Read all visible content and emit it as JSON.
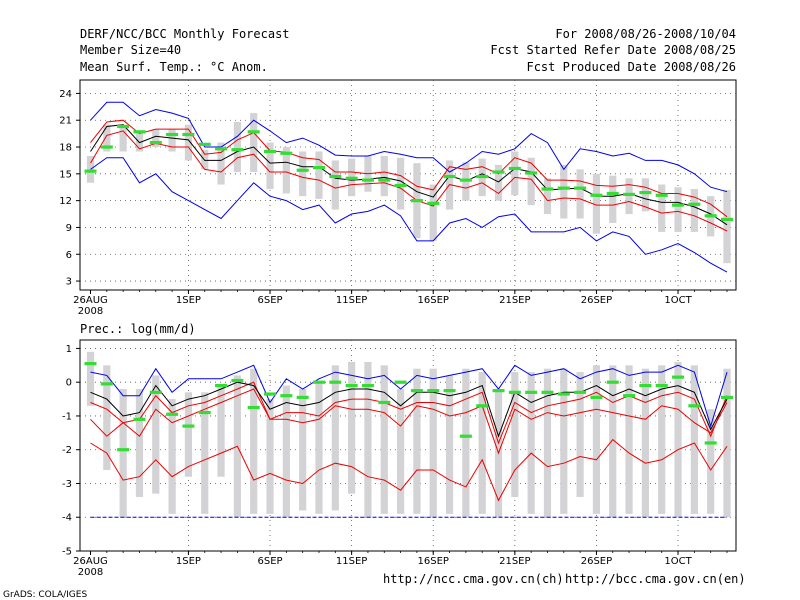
{
  "header": {
    "left": [
      "DERF/NCC/BCC Monthly Forecast",
      "Member Size=40",
      "Mean Surf. Temp.: °C Anom."
    ],
    "right": [
      "For 2008/08/26-2008/10/04",
      "Fcst Started Refer Date 2008/08/25",
      "Fcst Produced Date 2008/08/26"
    ]
  },
  "footer": {
    "url_ncc": "http://ncc.cma.gov.cn(ch)",
    "url_bcc": "http://bcc.cma.gov.cn(en)",
    "grads": "GrADS: COLA/IGES"
  },
  "colors": {
    "band": "#d3d3d6",
    "obs": "#33dd33",
    "mean": "#000000",
    "spread": "#ee0000",
    "extreme": "#0000ee",
    "grid": "#555555"
  },
  "chart_data": [
    {
      "type": "line",
      "title": "Mean Surf. Temp.: °C Anom.",
      "x_labels": [
        "26AUG",
        "1SEP",
        "6SEP",
        "11SEP",
        "16SEP",
        "21SEP",
        "26SEP",
        "1OCT"
      ],
      "x_sub_label": "2008",
      "x_label_days": [
        1,
        7,
        12,
        17,
        22,
        27,
        32,
        37
      ],
      "yticks": [
        3,
        6,
        9,
        12,
        15,
        18,
        21,
        24
      ],
      "ylim": [
        2,
        25.5
      ],
      "days": 40,
      "series": [
        {
          "name": "max",
          "color": "#0000ee",
          "values": [
            21,
            23,
            23,
            21.5,
            22.2,
            21.8,
            21.2,
            18,
            18,
            19.2,
            21,
            19.8,
            18.5,
            19,
            18.2,
            17.1,
            17,
            17,
            17.5,
            17.2,
            16.8,
            16.8,
            15.2,
            16.2,
            17.5,
            17.2,
            17.8,
            19.5,
            18.5,
            15.5,
            17.8,
            17.5,
            17,
            17.3,
            16.5,
            16.5,
            16,
            15,
            13.5,
            13
          ]
        },
        {
          "name": "upper",
          "color": "#ee0000",
          "values": [
            18.5,
            20.8,
            21,
            19.5,
            20,
            20,
            20,
            17.2,
            17.4,
            18.8,
            19.6,
            17.6,
            17.4,
            16.8,
            16.6,
            15.2,
            15.2,
            15,
            15.2,
            14.8,
            13.6,
            13.2,
            15.8,
            15.5,
            15.8,
            15,
            16.8,
            16.2,
            14.3,
            14.3,
            14.2,
            13.7,
            13.6,
            13.8,
            13.5,
            12.8,
            12.8,
            12.4,
            11.6,
            10.2
          ]
        },
        {
          "name": "mean",
          "color": "#000000",
          "values": [
            17.5,
            20.3,
            20.5,
            18.5,
            19.2,
            19,
            18.8,
            16.5,
            16.5,
            17.5,
            18,
            16.2,
            16.3,
            15.8,
            15.8,
            14.5,
            14.3,
            14.4,
            14.6,
            14.2,
            13,
            12.4,
            14.8,
            14.2,
            15,
            14.1,
            15.6,
            15.2,
            13.2,
            13.3,
            13.4,
            12.5,
            12.5,
            12.8,
            12.2,
            11.8,
            11.8,
            11.3,
            10.5,
            9.3
          ]
        },
        {
          "name": "lower",
          "color": "#ee0000",
          "values": [
            16.2,
            19.3,
            19.8,
            17.8,
            18.4,
            18,
            18,
            15.5,
            15.2,
            16.8,
            17.2,
            15.2,
            15.2,
            14.6,
            14.3,
            13.4,
            13.8,
            13.9,
            14,
            13.4,
            12,
            11.4,
            13.8,
            13.4,
            14,
            12.8,
            14.6,
            14.4,
            12,
            12.3,
            12.2,
            11.5,
            11.5,
            11.9,
            11.3,
            10.6,
            10.8,
            10.3,
            9.5,
            8.6
          ]
        },
        {
          "name": "min",
          "color": "#0000ee",
          "values": [
            15.5,
            16.8,
            16.8,
            14,
            15,
            13,
            12,
            11,
            10,
            12,
            14,
            12.5,
            12,
            11,
            11.5,
            9.5,
            10.5,
            10.8,
            11.5,
            10.3,
            7.5,
            7.5,
            9.5,
            10,
            9,
            10.2,
            10.5,
            8.5,
            8.5,
            8.5,
            9,
            7.5,
            8.5,
            8,
            6,
            6.5,
            7.2,
            6.2,
            5,
            4
          ]
        }
      ],
      "box": {
        "hi": [
          17,
          20.5,
          20.5,
          19.5,
          20,
          20,
          20.5,
          17.7,
          18.5,
          20.8,
          21.8,
          18.5,
          18,
          17.5,
          17.5,
          16.5,
          16.7,
          17,
          17,
          16.8,
          16.2,
          13.8,
          16.5,
          16.3,
          16.7,
          16,
          17.5,
          16.8,
          14.5,
          16,
          15.5,
          15,
          14.8,
          14.5,
          14.5,
          13.8,
          13.5,
          13.3,
          12.5,
          13.2
        ],
        "lo": [
          14,
          17.5,
          17.5,
          17.5,
          18,
          17.5,
          16.5,
          15.5,
          13.8,
          15.2,
          15.2,
          13.3,
          12.8,
          12.5,
          12.2,
          11,
          12.5,
          13,
          12.5,
          11,
          7.8,
          7.5,
          11,
          12,
          12.5,
          12,
          12.6,
          11.5,
          10.5,
          10,
          10,
          8.3,
          9.5,
          10.5,
          10.8,
          8.5,
          8.5,
          8.5,
          8,
          5
        ]
      },
      "obs": [
        15.3,
        18,
        20.3,
        19.7,
        18.5,
        19.4,
        19.4,
        18.3,
        17.8,
        17.7,
        19.7,
        17.5,
        17.3,
        15.4,
        15.7,
        14.7,
        14.5,
        14.3,
        14.3,
        13.7,
        12,
        11.7,
        14.7,
        14.3,
        14.7,
        15.2,
        15.6,
        15.1,
        13.3,
        13.4,
        13.4,
        12.6,
        12.8,
        12.7,
        12.9,
        12.6,
        11.5,
        11.6,
        10.3,
        9.9
      ]
    },
    {
      "type": "line",
      "title": "Prec.: log(mm/d)",
      "x_labels": [
        "26AUG",
        "1SEP",
        "6SEP",
        "11SEP",
        "16SEP",
        "21SEP",
        "26SEP",
        "1OCT"
      ],
      "x_sub_label": "2008",
      "x_label_days": [
        1,
        7,
        12,
        17,
        22,
        27,
        32,
        37
      ],
      "yticks": [
        -5,
        -4,
        -3,
        -2,
        -1,
        0,
        1
      ],
      "ylim": [
        -5,
        1.25
      ],
      "days": 40,
      "floor": -4,
      "series": [
        {
          "name": "max",
          "color": "#0000ee",
          "values": [
            0.3,
            0.2,
            -0.4,
            -0.4,
            0.4,
            -0.3,
            0.1,
            0.1,
            0.1,
            0.3,
            0.5,
            -0.6,
            0.1,
            -0.2,
            0.1,
            0.3,
            0.2,
            0.1,
            0.2,
            -0.2,
            0.2,
            0.1,
            0.2,
            0.3,
            0.4,
            -0.2,
            0.5,
            0.2,
            0.3,
            0.4,
            0.1,
            0.3,
            0.4,
            0.2,
            0.3,
            0.3,
            0.5,
            0.3,
            -1.3,
            0.3
          ]
        },
        {
          "name": "upper",
          "color": "#ee0000",
          "values": [
            -0.6,
            -0.8,
            -1.2,
            -1.1,
            -0.4,
            -0.9,
            -0.7,
            -0.6,
            -0.4,
            -0.2,
            0,
            -1.1,
            -0.9,
            -0.9,
            -1,
            -0.6,
            -0.5,
            -0.5,
            -0.6,
            -0.8,
            -0.6,
            -0.6,
            -0.7,
            -0.5,
            -0.3,
            -1.8,
            -0.6,
            -0.9,
            -0.7,
            -0.6,
            -0.5,
            -0.3,
            -0.6,
            -0.4,
            -0.6,
            -0.4,
            -0.3,
            -0.5,
            -1.6,
            -0.4
          ]
        },
        {
          "name": "mean",
          "color": "#000000",
          "values": [
            -0.3,
            -0.5,
            -1,
            -0.9,
            -0.1,
            -0.7,
            -0.5,
            -0.4,
            -0.2,
            0,
            -0.1,
            -0.8,
            -0.6,
            -0.7,
            -0.6,
            -0.3,
            -0.2,
            -0.2,
            -0.3,
            -0.7,
            -0.3,
            -0.3,
            -0.4,
            -0.3,
            -0.1,
            -1.6,
            -0.3,
            -0.6,
            -0.4,
            -0.3,
            -0.3,
            -0.1,
            -0.4,
            -0.2,
            -0.4,
            -0.2,
            -0.1,
            -0.3,
            -1.4,
            -0.5
          ]
        },
        {
          "name": "lower",
          "color": "#ee0000",
          "values": [
            -1.1,
            -1.6,
            -1.2,
            -1.6,
            -0.8,
            -1.2,
            -1,
            -0.8,
            -0.6,
            -0.4,
            -0.2,
            -1.1,
            -1.1,
            -1.2,
            -1.1,
            -0.7,
            -0.8,
            -0.8,
            -0.9,
            -1.3,
            -0.7,
            -0.8,
            -1,
            -0.9,
            -0.7,
            -2.1,
            -0.8,
            -1.1,
            -0.9,
            -1,
            -0.9,
            -0.8,
            -0.9,
            -1,
            -1.1,
            -0.7,
            -0.8,
            -1.2,
            -1.5,
            -0.6
          ]
        },
        {
          "name": "min",
          "color": "#ee0000",
          "values": [
            -1.8,
            -2.1,
            -2.9,
            -2.8,
            -2.3,
            -2.8,
            -2.5,
            -2.3,
            -2.1,
            -1.9,
            -2.9,
            -2.7,
            -2.9,
            -3,
            -2.6,
            -2.4,
            -2.5,
            -2.8,
            -2.9,
            -3.2,
            -2.6,
            -2.6,
            -2.9,
            -3.1,
            -2.3,
            -3.5,
            -2.6,
            -2.1,
            -2.5,
            -2.4,
            -2.2,
            -2.3,
            -1.7,
            -2.1,
            -2.4,
            -2.3,
            -2,
            -1.8,
            -2.6,
            -1.9
          ]
        }
      ],
      "box": {
        "hi": [
          0.9,
          0.5,
          -0.2,
          -0.2,
          0.2,
          -0.5,
          -0.3,
          -0.3,
          -0.1,
          0.2,
          0.4,
          -0.5,
          -0.1,
          -0.2,
          0,
          0.5,
          0.6,
          0.6,
          0.5,
          -0.2,
          0.4,
          0.4,
          0.2,
          0.4,
          0.3,
          -0.2,
          0.3,
          0.3,
          0.4,
          0.4,
          0.3,
          0.5,
          0.5,
          0.5,
          0.4,
          0.5,
          0.6,
          0.5,
          -0.8,
          0.4
        ],
        "lo": [
          -0.7,
          -2.6,
          -4,
          -3.4,
          -3.3,
          -3.9,
          -2.8,
          -3.9,
          -2.8,
          -4,
          -3.9,
          -3.9,
          -4,
          -3.8,
          -3.9,
          -3.8,
          -3.3,
          -4,
          -3.9,
          -3.9,
          -3.9,
          -4,
          -3.9,
          -4,
          -3.9,
          -4,
          -3.4,
          -3.9,
          -4,
          -3.9,
          -3.4,
          -3.9,
          -4,
          -3.9,
          -4,
          -3.9,
          -4,
          -3.9,
          -3.9,
          -4
        ]
      },
      "obs": [
        0.55,
        -0.05,
        -2,
        -1.1,
        -0.3,
        -0.95,
        -1.3,
        -0.9,
        -0.1,
        0.05,
        -0.75,
        -0.35,
        -0.4,
        -0.45,
        0,
        0,
        -0.1,
        -0.1,
        -0.6,
        0,
        -0.25,
        -0.25,
        -0.25,
        -1.6,
        -0.7,
        -0.25,
        -0.3,
        -0.3,
        -0.3,
        -0.35,
        -0.3,
        -0.45,
        0,
        -0.4,
        -0.1,
        -0.1,
        0.15,
        -0.7,
        -1.8,
        -0.45
      ]
    }
  ]
}
